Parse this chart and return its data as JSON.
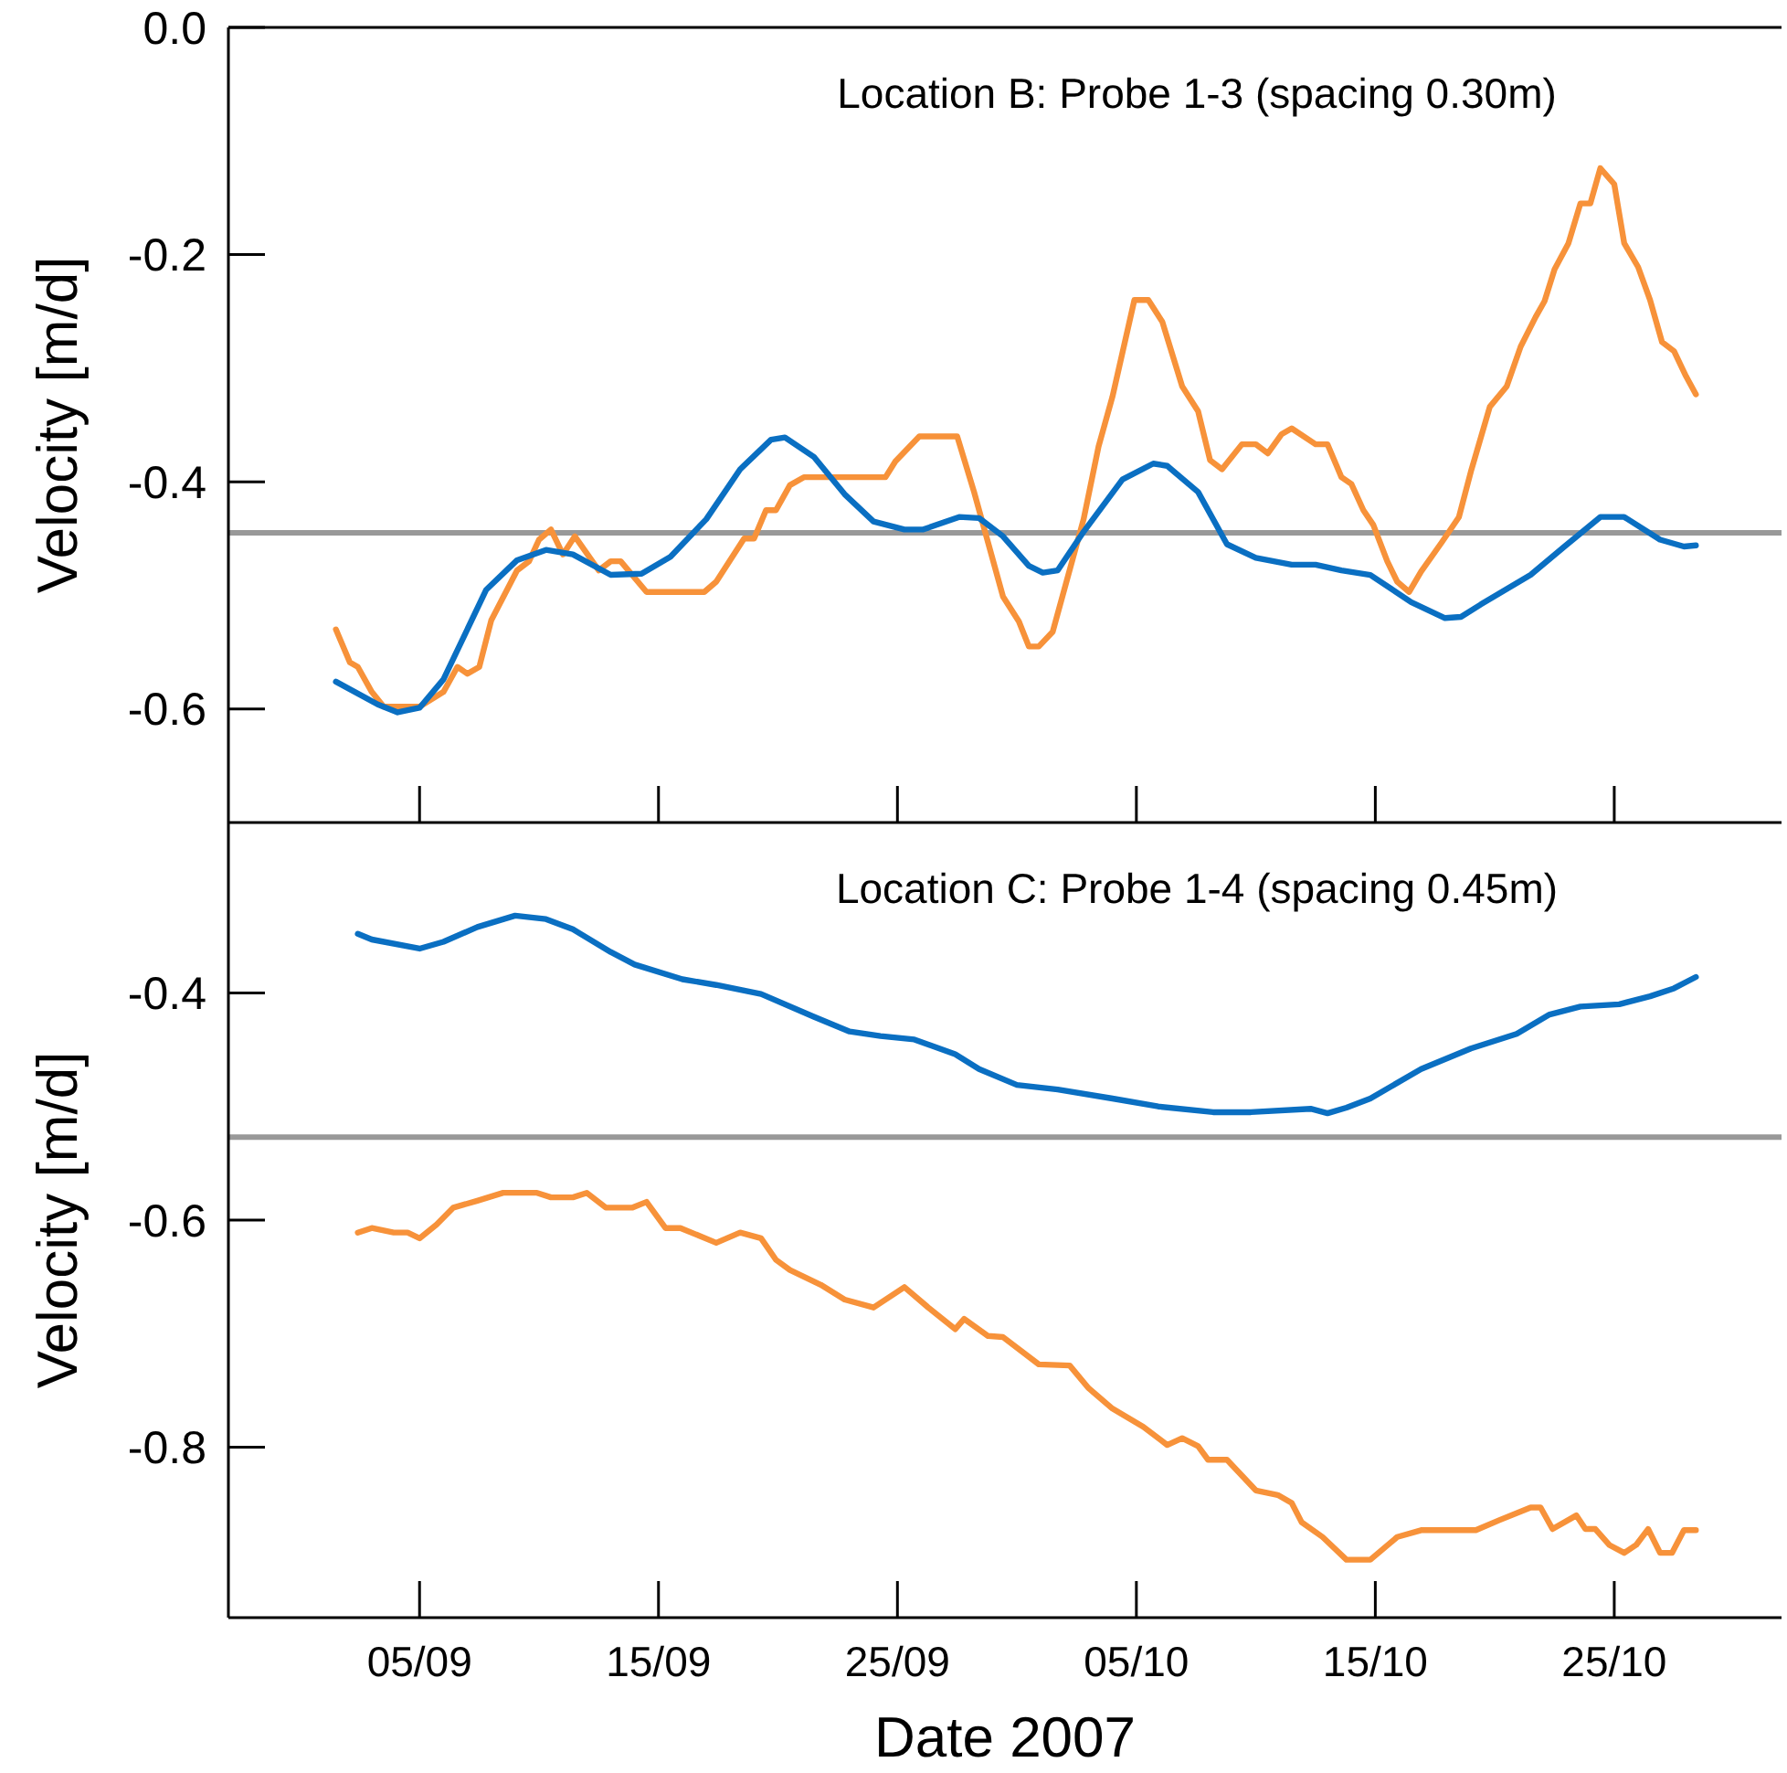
{
  "chart_data": [
    {
      "type": "line",
      "ylabel": "Velocity [m/d]",
      "annotations": [
        "Location B: Probe 1-3 (spacing 0.30m)"
      ],
      "xlim": [
        "2007-08-28",
        "2007-11-01"
      ],
      "xticks": [
        {
          "value": "2007-09-05",
          "label": null
        },
        {
          "value": "2007-09-15",
          "label": null
        },
        {
          "value": "2007-09-25",
          "label": null
        },
        {
          "value": "2007-10-05",
          "label": null
        },
        {
          "value": "2007-10-15",
          "label": null
        },
        {
          "value": "2007-10-25",
          "label": null
        }
      ],
      "ylim": [
        -0.7,
        0
      ],
      "yticks": [
        {
          "value": 0,
          "label": "0.0"
        },
        -0.2,
        -0.4,
        -0.6
      ],
      "tick_labels": "y",
      "ref_lines": [
        {
          "axis": "y",
          "value": -0.445,
          "color": "#999999"
        }
      ],
      "series": [
        {
          "color": "#f7923a",
          "x": [
            "2007-09-01T12:00",
            "2007-09-02T02:00",
            "2007-09-02T10:00",
            "2007-09-03",
            "2007-09-03T12:00",
            "2007-09-05",
            "2007-09-06",
            "2007-09-06T14:00",
            "2007-09-07",
            "2007-09-07T12:00",
            "2007-09-08",
            "2007-09-09T02:00",
            "2007-09-09T14:00",
            "2007-09-10",
            "2007-09-10T12:00",
            "2007-09-11",
            "2007-09-11T12:00",
            "2007-09-12T12:00",
            "2007-09-13",
            "2007-09-13T10:00",
            "2007-09-14T12:00",
            "2007-09-16T22:00",
            "2007-09-17T10:00",
            "2007-09-18T14:00",
            "2007-09-19",
            "2007-09-19T12:00",
            "2007-09-19T22:00",
            "2007-09-20T12:00",
            "2007-09-21T02:00",
            "2007-09-24T12:00",
            "2007-09-24T22:00",
            "2007-09-25T22:00",
            "2007-09-27T12:00",
            "2007-09-28T05:00",
            "2007-09-29T10:00",
            "2007-09-30T02:00",
            "2007-09-30T12:00",
            "2007-09-30T22:00",
            "2007-10-01T12:00",
            "2007-10-02T19:00",
            "2007-10-03T10:00",
            "2007-10-04",
            "2007-10-04T22:00",
            "2007-10-05T12:00",
            "2007-10-06T02:00",
            "2007-10-06T22:00",
            "2007-10-07T14:00",
            "2007-10-08T02:00",
            "2007-10-08T14:00",
            "2007-10-09T10:00",
            "2007-10-10",
            "2007-10-10T12:00",
            "2007-10-11T02:00",
            "2007-10-11T12:00",
            "2007-10-12T12:00",
            "2007-10-13",
            "2007-10-13T14:00",
            "2007-10-14",
            "2007-10-14T12:00",
            "2007-10-14T22:00",
            "2007-10-15T12:00",
            "2007-10-15T22:00",
            "2007-10-16T10:00",
            "2007-10-16T22:00",
            "2007-10-17T19:00",
            "2007-10-18T12:00",
            "2007-10-19",
            "2007-10-19T19:00",
            "2007-10-20T12:00",
            "2007-10-21T02:00",
            "2007-10-21T17:00",
            "2007-10-22T02:00",
            "2007-10-22T12:00",
            "2007-10-23T02:00",
            "2007-10-23T14:00",
            "2007-10-24",
            "2007-10-24T10:00",
            "2007-10-25",
            "2007-10-25T10:00",
            "2007-10-26",
            "2007-10-26T12:00",
            "2007-10-27",
            "2007-10-27T12:00",
            "2007-10-28",
            "2007-10-28T10:00"
          ],
          "values": [
            -0.53,
            -0.559,
            -0.563,
            -0.585,
            -0.598,
            -0.598,
            -0.585,
            -0.563,
            -0.569,
            -0.563,
            -0.522,
            -0.478,
            -0.47,
            -0.451,
            -0.442,
            -0.464,
            -0.448,
            -0.478,
            -0.47,
            -0.47,
            -0.497,
            -0.497,
            -0.488,
            -0.45,
            -0.45,
            -0.425,
            -0.425,
            -0.403,
            -0.396,
            -0.396,
            -0.382,
            -0.36,
            -0.36,
            -0.409,
            -0.501,
            -0.523,
            -0.545,
            -0.545,
            -0.532,
            -0.433,
            -0.369,
            -0.325,
            -0.24,
            -0.24,
            -0.259,
            -0.316,
            -0.338,
            -0.381,
            -0.389,
            -0.367,
            -0.367,
            -0.375,
            -0.358,
            -0.353,
            -0.367,
            -0.367,
            -0.396,
            -0.402,
            -0.425,
            -0.438,
            -0.47,
            -0.488,
            -0.497,
            -0.479,
            -0.453,
            -0.431,
            -0.391,
            -0.334,
            -0.316,
            -0.281,
            -0.255,
            -0.241,
            -0.213,
            -0.19,
            -0.155,
            -0.155,
            -0.124,
            -0.138,
            -0.19,
            -0.211,
            -0.24,
            -0.277,
            -0.285,
            -0.307,
            -0.323
          ]
        },
        {
          "color": "#0a6fc2",
          "x": [
            "2007-09-01T12:00",
            "2007-09-03T06:00",
            "2007-09-04T02:00",
            "2007-09-05",
            "2007-09-06",
            "2007-09-07T19:00",
            "2007-09-09T02:00",
            "2007-09-10T07:00",
            "2007-09-11T10:00",
            "2007-09-13",
            "2007-09-14T07:00",
            "2007-09-15T12:00",
            "2007-09-17",
            "2007-09-18T10:00",
            "2007-09-19T17:00",
            "2007-09-20T07:00",
            "2007-09-21T12:00",
            "2007-09-22T19:00",
            "2007-09-24",
            "2007-09-25T07:00",
            "2007-09-26T02:00",
            "2007-09-27T14:00",
            "2007-09-28T10:00",
            "2007-09-29T10:00",
            "2007-09-30T12:00",
            "2007-10-01T02:00",
            "2007-10-01T17:00",
            "2007-10-02T19:00",
            "2007-10-04T10:00",
            "2007-10-05T17:00",
            "2007-10-06T07:00",
            "2007-10-07T14:00",
            "2007-10-08T19:00",
            "2007-10-10",
            "2007-10-11T12:00",
            "2007-10-12T12:00",
            "2007-10-13T14:00",
            "2007-10-14T19:00",
            "2007-10-16T12:00",
            "2007-10-17T22:00",
            "2007-10-18T14:00",
            "2007-10-19T10:00",
            "2007-10-21T12:00",
            "2007-10-22T22:00",
            "2007-10-24T10:00",
            "2007-10-25T10:00",
            "2007-10-26T22:00",
            "2007-10-27T22:00",
            "2007-10-28T10:00"
          ],
          "values": [
            -0.576,
            -0.596,
            -0.603,
            -0.599,
            -0.574,
            -0.495,
            -0.469,
            -0.46,
            -0.464,
            -0.482,
            -0.481,
            -0.466,
            -0.433,
            -0.389,
            -0.363,
            -0.361,
            -0.378,
            -0.411,
            -0.435,
            -0.442,
            -0.442,
            -0.431,
            -0.432,
            -0.448,
            -0.474,
            -0.48,
            -0.478,
            -0.444,
            -0.398,
            -0.384,
            -0.386,
            -0.409,
            -0.455,
            -0.467,
            -0.473,
            -0.473,
            -0.478,
            -0.482,
            -0.506,
            -0.52,
            -0.519,
            -0.508,
            -0.482,
            -0.457,
            -0.431,
            -0.431,
            -0.451,
            -0.457,
            -0.456
          ]
        }
      ]
    },
    {
      "type": "line",
      "ylabel": "Velocity [m/d]",
      "xlabel": "Date 2007",
      "annotations": [
        "Location C: Probe 1-4 (spacing 0.45m)"
      ],
      "xlim": [
        "2007-08-28",
        "2007-11-01"
      ],
      "xticks": [
        {
          "value": "2007-09-05",
          "label": "05/09"
        },
        {
          "value": "2007-09-15",
          "label": "15/09"
        },
        {
          "value": "2007-09-25",
          "label": "25/09"
        },
        {
          "value": "2007-10-05",
          "label": "05/10"
        },
        {
          "value": "2007-10-15",
          "label": "15/10"
        },
        {
          "value": "2007-10-25",
          "label": "25/10"
        }
      ],
      "ylim": [
        -0.95,
        -0.25
      ],
      "yticks": [
        -0.4,
        -0.6,
        -0.8
      ],
      "ref_lines": [
        {
          "axis": "y",
          "value": -0.527,
          "color": "#999999"
        }
      ],
      "series": [
        {
          "color": "#0a6fc2",
          "x": [
            "2007-09-02T10:00",
            "2007-09-03",
            "2007-09-05",
            "2007-09-06",
            "2007-09-07T10:00",
            "2007-09-09",
            "2007-09-10T07:00",
            "2007-09-11T10:00",
            "2007-09-13",
            "2007-09-14",
            "2007-09-16",
            "2007-09-17T10:00",
            "2007-09-19T07:00",
            "2007-09-21T12:00",
            "2007-09-23",
            "2007-09-24T07:00",
            "2007-09-25T17:00",
            "2007-09-27T10:00",
            "2007-09-28T10:00",
            "2007-09-30",
            "2007-10-01T17:00",
            "2007-10-04",
            "2007-10-05T22:00",
            "2007-10-08T05:00",
            "2007-10-09T19:00",
            "2007-10-12T07:00",
            "2007-10-13",
            "2007-10-13T19:00",
            "2007-10-14T19:00",
            "2007-10-16T22:00",
            "2007-10-19",
            "2007-10-20T22:00",
            "2007-10-22T07:00",
            "2007-10-23T14:00",
            "2007-10-25T05:00",
            "2007-10-26T12:00",
            "2007-10-27T12:00",
            "2007-10-28T10:00"
          ],
          "values": [
            -0.348,
            -0.353,
            -0.361,
            -0.355,
            -0.342,
            -0.332,
            -0.335,
            -0.344,
            -0.364,
            -0.375,
            -0.388,
            -0.393,
            -0.401,
            -0.421,
            -0.434,
            -0.438,
            -0.441,
            -0.454,
            -0.467,
            -0.481,
            -0.485,
            -0.493,
            -0.5,
            -0.505,
            -0.505,
            -0.502,
            -0.506,
            -0.501,
            -0.493,
            -0.467,
            -0.449,
            -0.436,
            -0.419,
            -0.412,
            -0.41,
            -0.403,
            -0.396,
            -0.386
          ]
        },
        {
          "color": "#f7923a",
          "x": [
            "2007-09-02T10:00",
            "2007-09-03",
            "2007-09-03T22:00",
            "2007-09-04T12:00",
            "2007-09-05",
            "2007-09-05T17:00",
            "2007-09-06T10:00",
            "2007-09-07T10:00",
            "2007-09-08T12:00",
            "2007-09-09T22:00",
            "2007-09-10T12:00",
            "2007-09-11T10:00",
            "2007-09-12",
            "2007-09-12T19:00",
            "2007-09-13T22:00",
            "2007-09-14T12:00",
            "2007-09-15T07:00",
            "2007-09-15T22:00",
            "2007-09-17T10:00",
            "2007-09-18T10:00",
            "2007-09-19T07:00",
            "2007-09-19T22:00",
            "2007-09-20T12:00",
            "2007-09-21T19:00",
            "2007-09-22T19:00",
            "2007-09-24",
            "2007-09-25T07:00",
            "2007-09-26T07:00",
            "2007-09-27T10:00",
            "2007-09-27T19:00",
            "2007-09-28T19:00",
            "2007-09-29T10:00",
            "2007-09-30T22:00",
            "2007-10-02T05:00",
            "2007-10-03",
            "2007-10-04",
            "2007-10-05T07:00",
            "2007-10-06T07:00",
            "2007-10-06T22:00",
            "2007-10-07T14:00",
            "2007-10-08",
            "2007-10-08T19:00",
            "2007-10-10",
            "2007-10-10T22:00",
            "2007-10-11T12:00",
            "2007-10-11T22:00",
            "2007-10-12T19:00",
            "2007-10-13T19:00",
            "2007-10-14T19:00",
            "2007-10-15T22:00",
            "2007-10-16T22:00",
            "2007-10-19T05:00",
            "2007-10-20T05:00",
            "2007-10-21T12:00",
            "2007-10-21T22:00",
            "2007-10-22T10:00",
            "2007-10-23T10:00",
            "2007-10-23T19:00",
            "2007-10-24T05:00",
            "2007-10-24T19:00",
            "2007-10-25T10:00",
            "2007-10-25T22:00",
            "2007-10-26T10:00",
            "2007-10-26T22:00",
            "2007-10-27T10:00",
            "2007-10-27T22:00",
            "2007-10-28T10:00"
          ],
          "values": [
            -0.611,
            -0.607,
            -0.611,
            -0.611,
            -0.616,
            -0.604,
            -0.589,
            -0.583,
            -0.576,
            -0.576,
            -0.58,
            -0.58,
            -0.576,
            -0.589,
            -0.589,
            -0.584,
            -0.607,
            -0.607,
            -0.62,
            -0.611,
            -0.616,
            -0.635,
            -0.644,
            -0.657,
            -0.67,
            -0.677,
            -0.659,
            -0.677,
            -0.696,
            -0.687,
            -0.702,
            -0.703,
            -0.727,
            -0.728,
            -0.748,
            -0.766,
            -0.782,
            -0.798,
            -0.792,
            -0.799,
            -0.811,
            -0.811,
            -0.838,
            -0.842,
            -0.849,
            -0.866,
            -0.879,
            -0.899,
            -0.899,
            -0.879,
            -0.873,
            -0.873,
            -0.864,
            -0.853,
            -0.853,
            -0.872,
            -0.86,
            -0.872,
            -0.872,
            -0.886,
            -0.893,
            -0.886,
            -0.872,
            -0.893,
            -0.893,
            -0.873,
            -0.873
          ]
        }
      ]
    }
  ]
}
